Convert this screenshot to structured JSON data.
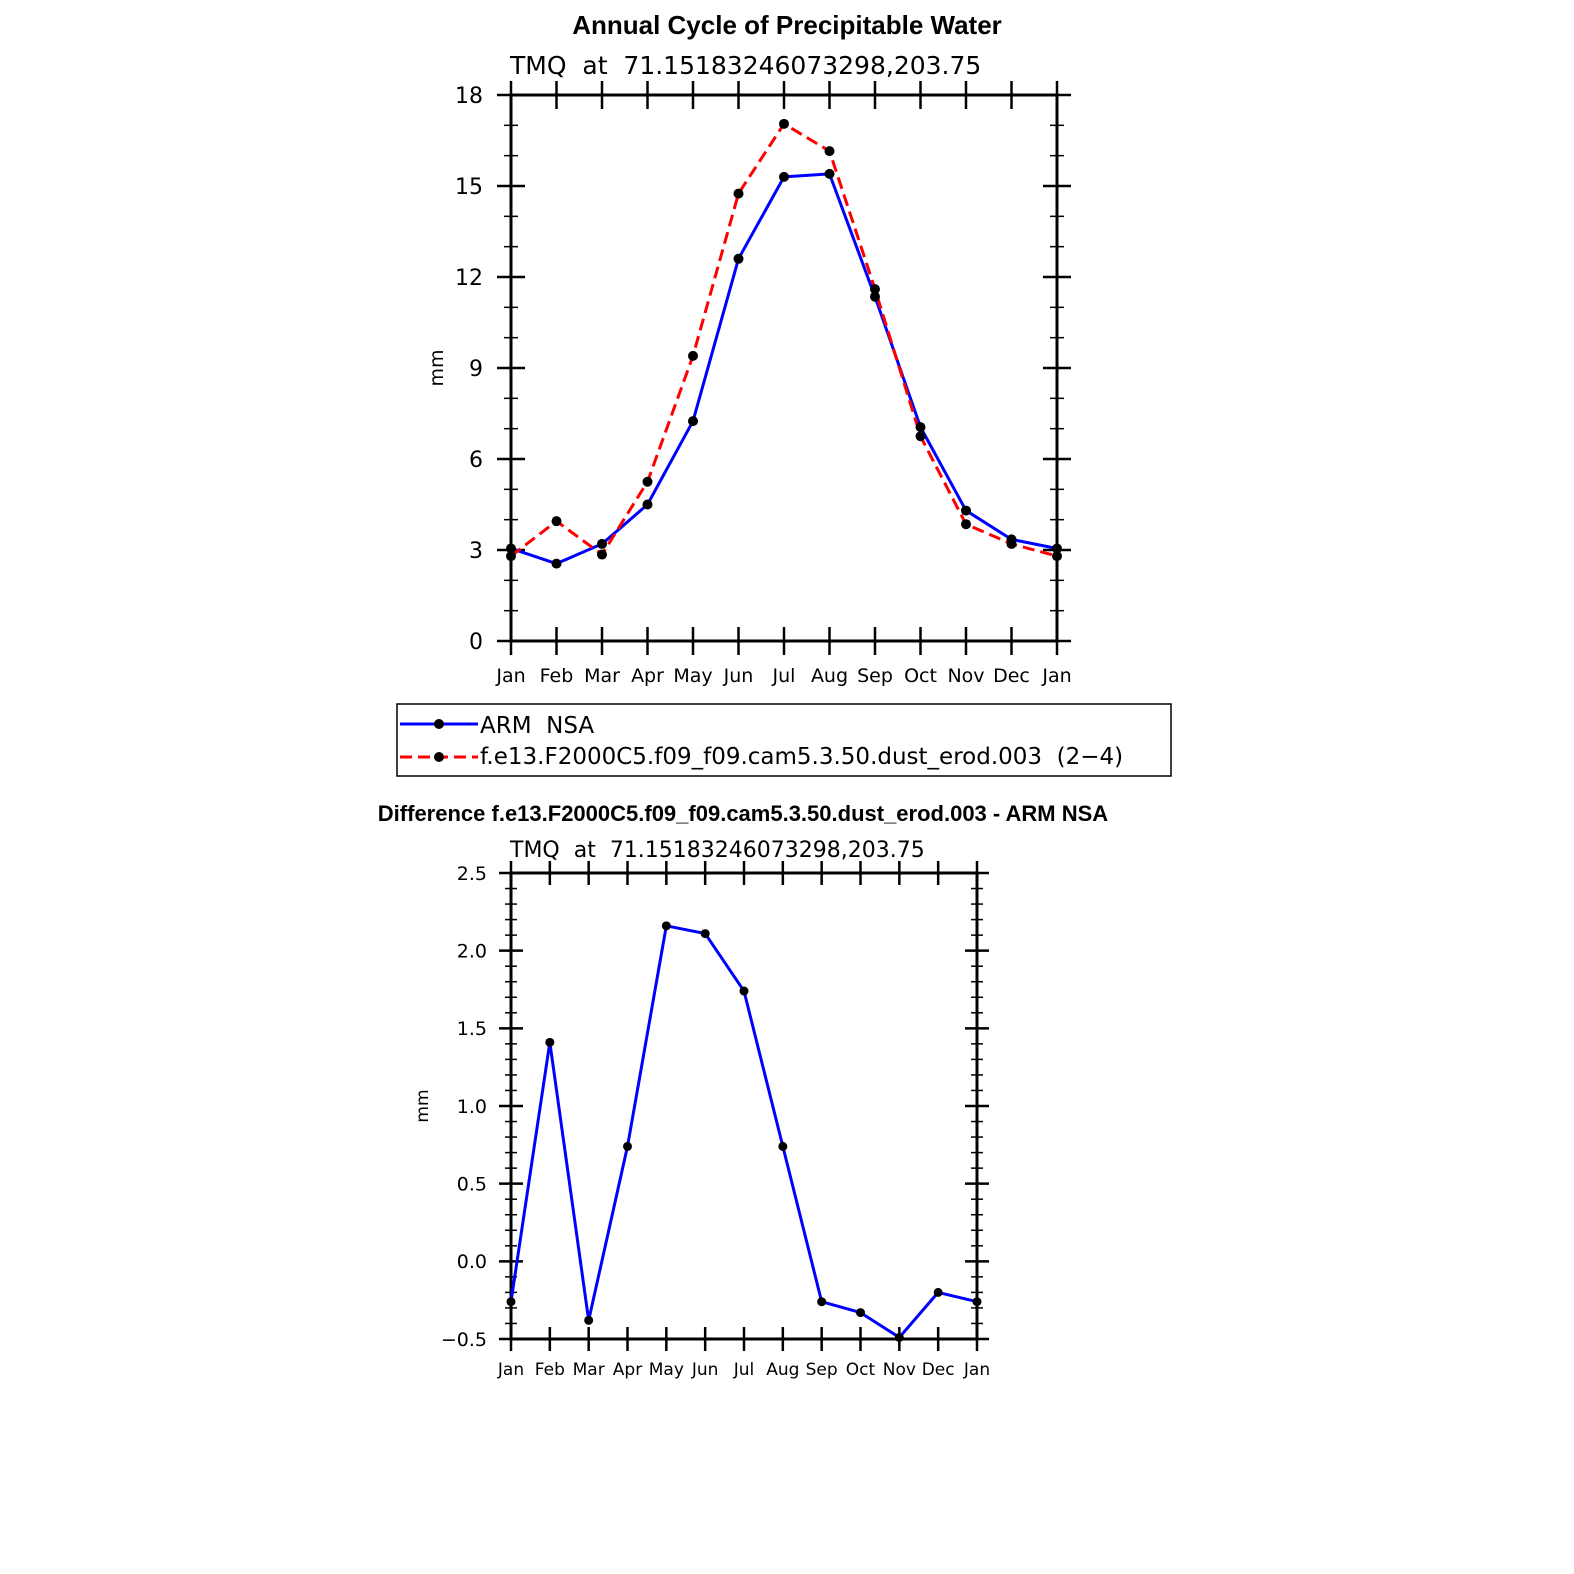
{
  "chart_data": [
    {
      "type": "line",
      "title": "Annual Cycle of Precipitable Water",
      "subtitle": "TMQ  at  71.15183246073298,203.75",
      "xlabel": "",
      "ylabel": "mm",
      "categories": [
        "Jan",
        "Feb",
        "Mar",
        "Apr",
        "May",
        "Jun",
        "Jul",
        "Aug",
        "Sep",
        "Oct",
        "Nov",
        "Dec",
        "Jan"
      ],
      "ylim": [
        0,
        18
      ],
      "yticks": [
        0,
        3,
        6,
        9,
        12,
        15,
        18
      ],
      "ytick_labels": [
        "0",
        "3",
        "6",
        "9",
        "12",
        "15",
        "18"
      ],
      "grid": false,
      "legend_position": "below",
      "series": [
        {
          "name": "ARM  NSA",
          "color": "#0000ff",
          "dash": "solid",
          "values": [
            3.05,
            2.55,
            3.2,
            4.5,
            7.25,
            12.6,
            15.3,
            15.4,
            11.35,
            7.05,
            4.3,
            3.35,
            3.05
          ]
        },
        {
          "name": "f.e13.F2000C5.f09_f09.cam5.3.50.dust_erod.003  (2−4)",
          "color": "#ff0000",
          "dash": "dashed",
          "values": [
            2.8,
            3.95,
            2.85,
            5.25,
            9.4,
            14.75,
            17.05,
            16.15,
            11.6,
            6.75,
            3.85,
            3.2,
            2.8
          ]
        }
      ]
    },
    {
      "type": "line",
      "title": "Difference f.e13.F2000C5.f09_f09.cam5.3.50.dust_erod.003 - ARM NSA",
      "subtitle": "TMQ  at  71.15183246073298,203.75",
      "xlabel": "",
      "ylabel": "mm",
      "categories": [
        "Jan",
        "Feb",
        "Mar",
        "Apr",
        "May",
        "Jun",
        "Jul",
        "Aug",
        "Sep",
        "Oct",
        "Nov",
        "Dec",
        "Jan"
      ],
      "ylim": [
        -0.5,
        2.5
      ],
      "yticks": [
        -0.5,
        0.0,
        0.5,
        1.0,
        1.5,
        2.0,
        2.5
      ],
      "ytick_labels": [
        "−0.5",
        "0.0",
        "0.5",
        "1.0",
        "1.5",
        "2.0",
        "2.5"
      ],
      "grid": false,
      "series": [
        {
          "name": "Difference",
          "color": "#0000ff",
          "dash": "solid",
          "values": [
            -0.26,
            1.41,
            -0.38,
            0.74,
            2.16,
            2.11,
            1.74,
            0.74,
            -0.26,
            -0.33,
            -0.49,
            -0.2,
            -0.26
          ]
        }
      ]
    }
  ]
}
